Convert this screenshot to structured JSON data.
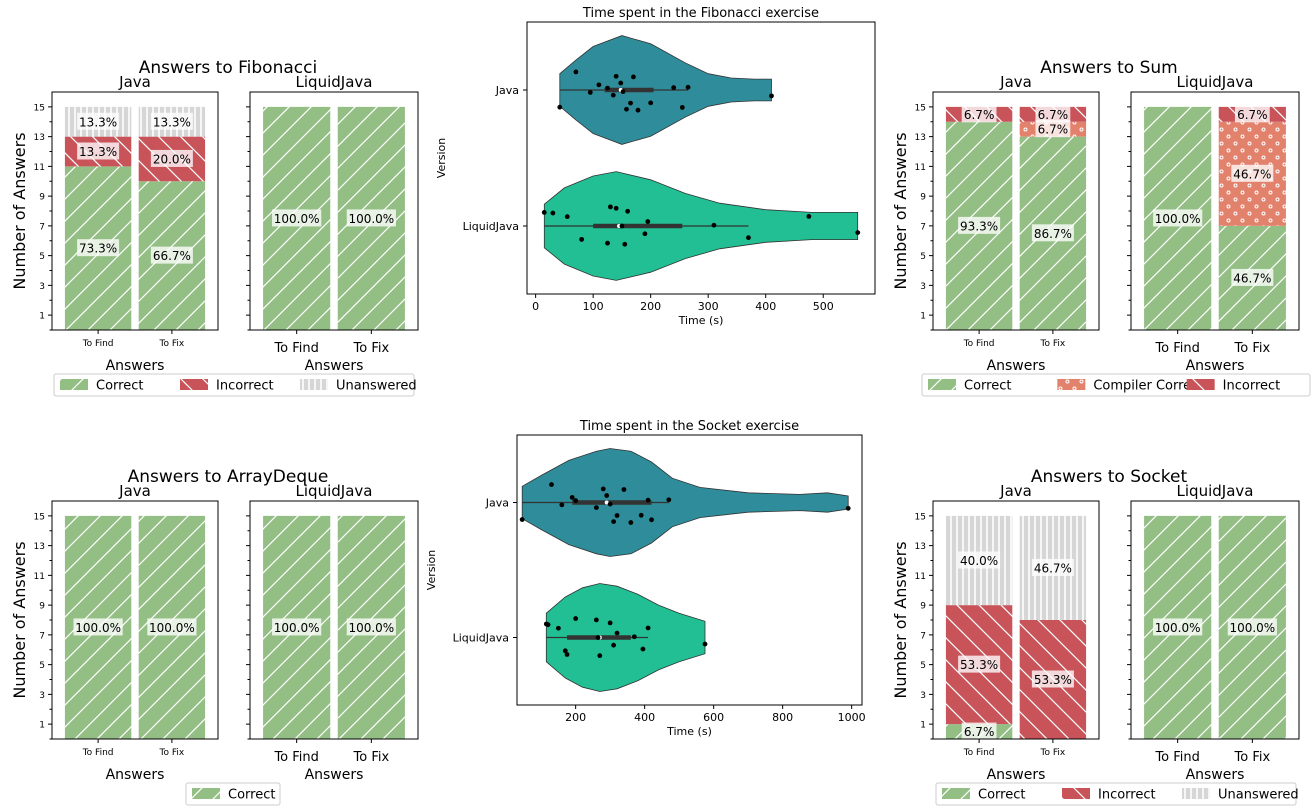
{
  "colors": {
    "correct": "#93bf85",
    "incorrect": "#c8545a",
    "unanswered": "#d6d6d6",
    "compiler_correct": "#e3826c",
    "violin_java": "#2f8c9a",
    "violin_liquidjava": "#21bf93"
  },
  "chart_data": [
    {
      "id": "answers-fibonacci",
      "type": "bar",
      "stacked": true,
      "title": "Answers to Fibonacci",
      "ylabel": "Number of Answers",
      "ylim": [
        0,
        16
      ],
      "yticks": [
        "1",
        "3",
        "5",
        "7",
        "9",
        "11",
        "13",
        "15"
      ],
      "legend": [
        "Correct",
        "Incorrect",
        "Unanswered"
      ],
      "legend_position": "bottom",
      "panels": [
        {
          "subtitle": "Java",
          "xlabel": "Answers",
          "small_ticks": true,
          "categories": [
            "To Find",
            "To Fix"
          ],
          "series": [
            {
              "name": "Correct",
              "kind": "correct",
              "values": [
                11,
                10
              ],
              "labels": [
                "73.3%",
                "66.7%"
              ]
            },
            {
              "name": "Incorrect",
              "kind": "incorrect",
              "values": [
                2,
                3
              ],
              "labels": [
                "13.3%",
                "20.0%"
              ]
            },
            {
              "name": "Unanswered",
              "kind": "unanswered",
              "values": [
                2,
                2
              ],
              "labels": [
                "13.3%",
                "13.3%"
              ]
            }
          ]
        },
        {
          "subtitle": "LiquidJava",
          "xlabel": "Answers",
          "small_ticks": false,
          "categories": [
            "To Find",
            "To Fix"
          ],
          "series": [
            {
              "name": "Correct",
              "kind": "correct",
              "values": [
                15,
                15
              ],
              "labels": [
                "100.0%",
                "100.0%"
              ]
            }
          ]
        }
      ]
    },
    {
      "id": "answers-sum",
      "type": "bar",
      "stacked": true,
      "title": "Answers to Sum",
      "ylabel": "Number of Answers",
      "ylim": [
        0,
        16
      ],
      "yticks": [
        "1",
        "3",
        "5",
        "7",
        "9",
        "11",
        "13",
        "15"
      ],
      "legend": [
        "Correct",
        "Compiler Correct",
        "Incorrect"
      ],
      "legend_position": "bottom",
      "panels": [
        {
          "subtitle": "Java",
          "xlabel": "Answers",
          "small_ticks": true,
          "categories": [
            "To Find",
            "To Fix"
          ],
          "series": [
            {
              "name": "Correct",
              "kind": "correct",
              "values": [
                14,
                13
              ],
              "labels": [
                "93.3%",
                "86.7%"
              ]
            },
            {
              "name": "Compiler Correct",
              "kind": "compiler_correct",
              "values": [
                0,
                1
              ],
              "labels": [
                "",
                "6.7%"
              ]
            },
            {
              "name": "Incorrect",
              "kind": "incorrect",
              "values": [
                1,
                1
              ],
              "labels": [
                "6.7%",
                "6.7%"
              ]
            }
          ]
        },
        {
          "subtitle": "LiquidJava",
          "xlabel": "Answers",
          "small_ticks": false,
          "categories": [
            "To Find",
            "To Fix"
          ],
          "series": [
            {
              "name": "Correct",
              "kind": "correct",
              "values": [
                15,
                7
              ],
              "labels": [
                "100.0%",
                "46.7%"
              ]
            },
            {
              "name": "Compiler Correct",
              "kind": "compiler_correct",
              "values": [
                0,
                7
              ],
              "labels": [
                "",
                "46.7%"
              ]
            },
            {
              "name": "Incorrect",
              "kind": "incorrect",
              "values": [
                0,
                1
              ],
              "labels": [
                "",
                "6.7%"
              ]
            }
          ]
        }
      ]
    },
    {
      "id": "answers-arraydeque",
      "type": "bar",
      "stacked": true,
      "title": "Answers to ArrayDeque",
      "ylabel": "Number of Answers",
      "ylim": [
        0,
        16
      ],
      "yticks": [
        "1",
        "3",
        "5",
        "7",
        "9",
        "11",
        "13",
        "15"
      ],
      "legend": [
        "Correct"
      ],
      "legend_position": "bottom",
      "panels": [
        {
          "subtitle": "Java",
          "xlabel": "Answers",
          "small_ticks": true,
          "categories": [
            "To Find",
            "To Fix"
          ],
          "series": [
            {
              "name": "Correct",
              "kind": "correct",
              "values": [
                15,
                15
              ],
              "labels": [
                "100.0%",
                "100.0%"
              ]
            }
          ]
        },
        {
          "subtitle": "LiquidJava",
          "xlabel": "Answers",
          "small_ticks": false,
          "categories": [
            "To Find",
            "To Fix"
          ],
          "series": [
            {
              "name": "Correct",
              "kind": "correct",
              "values": [
                15,
                15
              ],
              "labels": [
                "100.0%",
                "100.0%"
              ]
            }
          ]
        }
      ]
    },
    {
      "id": "answers-socket",
      "type": "bar",
      "stacked": true,
      "title": "Answers to Socket",
      "ylabel": "Number of Answers",
      "ylim": [
        0,
        16
      ],
      "yticks": [
        "1",
        "3",
        "5",
        "7",
        "9",
        "11",
        "13",
        "15"
      ],
      "legend": [
        "Correct",
        "Incorrect",
        "Unanswered"
      ],
      "legend_position": "bottom",
      "panels": [
        {
          "subtitle": "Java",
          "xlabel": "Answers",
          "small_ticks": true,
          "categories": [
            "To Find",
            "To Fix"
          ],
          "series": [
            {
              "name": "Correct",
              "kind": "correct",
              "values": [
                1,
                0
              ],
              "labels": [
                "6.7%",
                ""
              ]
            },
            {
              "name": "Incorrect",
              "kind": "incorrect",
              "values": [
                8,
                8
              ],
              "labels": [
                "53.3%",
                "53.3%"
              ]
            },
            {
              "name": "Unanswered",
              "kind": "unanswered",
              "values": [
                6,
                7
              ],
              "labels": [
                "40.0%",
                "46.7%"
              ]
            }
          ]
        },
        {
          "subtitle": "LiquidJava",
          "xlabel": "Answers",
          "small_ticks": false,
          "categories": [
            "To Find",
            "To Fix"
          ],
          "series": [
            {
              "name": "Correct",
              "kind": "correct",
              "values": [
                15,
                15
              ],
              "labels": [
                "100.0%",
                "100.0%"
              ]
            }
          ]
        }
      ]
    },
    {
      "id": "time-fibonacci",
      "type": "violin",
      "title": "Time spent in the Fibonacci exercise",
      "xlabel": "Time (s)",
      "ylabel": "Version",
      "xlim": [
        -15,
        590
      ],
      "xticks": [
        0,
        100,
        200,
        300,
        400,
        500
      ],
      "categories": [
        "Java",
        "LiquidJava"
      ],
      "series": [
        {
          "name": "Java",
          "values": [
            42,
            70,
            95,
            110,
            125,
            135,
            140,
            148,
            152,
            158,
            165,
            170,
            178,
            200,
            240,
            255,
            265,
            410
          ],
          "quartiles": [
            120,
            148,
            205
          ],
          "whiskers": [
            42,
            265
          ],
          "profile": [
            [
              42,
              0.3
            ],
            [
              70,
              0.55
            ],
            [
              100,
              0.8
            ],
            [
              150,
              1.0
            ],
            [
              200,
              0.85
            ],
            [
              260,
              0.5
            ],
            [
              300,
              0.3
            ],
            [
              340,
              0.22
            ],
            [
              380,
              0.2
            ],
            [
              410,
              0.2
            ]
          ]
        },
        {
          "name": "LiquidJava",
          "values": [
            15,
            30,
            55,
            80,
            125,
            130,
            140,
            150,
            155,
            160,
            190,
            195,
            310,
            370,
            475,
            560
          ],
          "quartiles": [
            100,
            145,
            255
          ],
          "whiskers": [
            15,
            370
          ],
          "profile": [
            [
              15,
              0.4
            ],
            [
              50,
              0.7
            ],
            [
              100,
              0.92
            ],
            [
              140,
              1.0
            ],
            [
              200,
              0.85
            ],
            [
              260,
              0.6
            ],
            [
              320,
              0.42
            ],
            [
              400,
              0.3
            ],
            [
              480,
              0.25
            ],
            [
              560,
              0.25
            ]
          ]
        }
      ]
    },
    {
      "id": "time-socket",
      "type": "violin",
      "title": "Time spent in the Socket exercise",
      "xlabel": "Time (s)",
      "ylabel": "Version",
      "xlim": [
        30,
        1030
      ],
      "xticks": [
        200,
        400,
        600,
        800,
        1000
      ],
      "categories": [
        "Java",
        "LiquidJava"
      ],
      "series": [
        {
          "name": "Java",
          "values": [
            45,
            130,
            160,
            190,
            200,
            260,
            280,
            290,
            300,
            310,
            320,
            340,
            360,
            390,
            410,
            420,
            470,
            990
          ],
          "quartiles": [
            190,
            290,
            420
          ],
          "whiskers": [
            45,
            470
          ],
          "profile": [
            [
              45,
              0.3
            ],
            [
              100,
              0.5
            ],
            [
              180,
              0.78
            ],
            [
              260,
              0.95
            ],
            [
              300,
              1.0
            ],
            [
              360,
              0.95
            ],
            [
              420,
              0.75
            ],
            [
              480,
              0.45
            ],
            [
              560,
              0.28
            ],
            [
              700,
              0.18
            ],
            [
              850,
              0.15
            ],
            [
              930,
              0.18
            ],
            [
              990,
              0.12
            ]
          ]
        },
        {
          "name": "LiquidJava",
          "values": [
            115,
            120,
            150,
            170,
            175,
            200,
            260,
            265,
            270,
            300,
            310,
            320,
            370,
            395,
            410,
            575
          ],
          "quartiles": [
            175,
            270,
            360
          ],
          "whiskers": [
            115,
            410
          ],
          "profile": [
            [
              115,
              0.45
            ],
            [
              170,
              0.75
            ],
            [
              220,
              0.92
            ],
            [
              270,
              1.0
            ],
            [
              320,
              0.95
            ],
            [
              380,
              0.8
            ],
            [
              440,
              0.6
            ],
            [
              500,
              0.45
            ],
            [
              575,
              0.3
            ]
          ]
        }
      ]
    }
  ]
}
